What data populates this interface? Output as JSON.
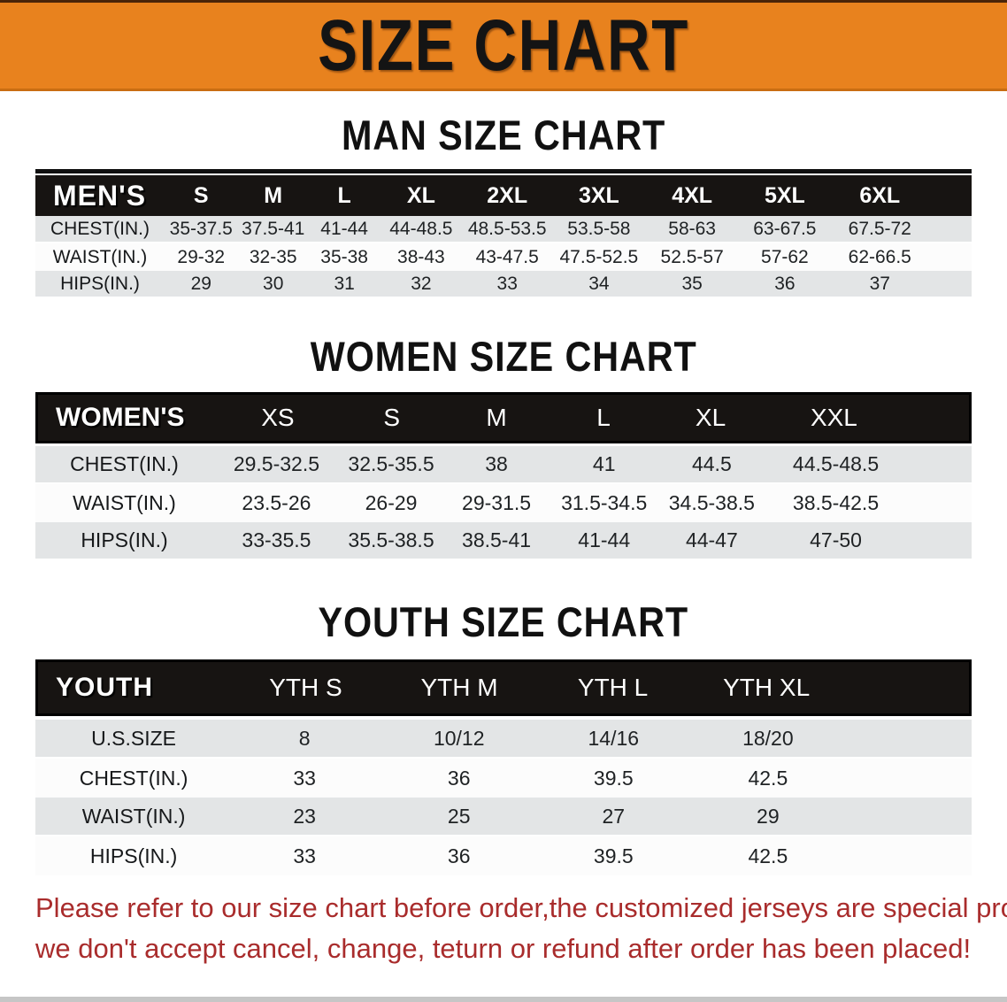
{
  "banner": {
    "title": "SIZE CHART"
  },
  "colors": {
    "banner_orange": "#E8821E",
    "table_header_black": "#171412",
    "row_stripe_gray": "#E3E5E6",
    "note_red": "#A92C2C"
  },
  "sections": [
    {
      "key": "mens",
      "title": "MAN SIZE CHART",
      "header_label": "MEN'S",
      "columns": [
        "S",
        "M",
        "L",
        "XL",
        "2XL",
        "3XL",
        "4XL",
        "5XL",
        "6XL"
      ],
      "rows": [
        {
          "label": "CHEST(IN.)",
          "values": [
            "35-37.5",
            "37.5-41",
            "41-44",
            "44-48.5",
            "48.5-53.5",
            "53.5-58",
            "58-63",
            "63-67.5",
            "67.5-72"
          ]
        },
        {
          "label": "WAIST(IN.)",
          "values": [
            "29-32",
            "32-35",
            "35-38",
            "38-43",
            "43-47.5",
            "47.5-52.5",
            "52.5-57",
            "57-62",
            "62-66.5"
          ]
        },
        {
          "label": "HIPS(IN.)",
          "values": [
            "29",
            "30",
            "31",
            "32",
            "33",
            "34",
            "35",
            "36",
            "37"
          ]
        }
      ]
    },
    {
      "key": "womens",
      "title": "WOMEN SIZE CHART",
      "header_label": "WOMEN'S",
      "columns": [
        "XS",
        "S",
        "M",
        "L",
        "XL",
        "XXL"
      ],
      "rows": [
        {
          "label": "CHEST(IN.)",
          "values": [
            "29.5-32.5",
            "32.5-35.5",
            "38",
            "41",
            "44.5",
            "44.5-48.5"
          ]
        },
        {
          "label": "WAIST(IN.)",
          "values": [
            "23.5-26",
            "26-29",
            "29-31.5",
            "31.5-34.5",
            "34.5-38.5",
            "38.5-42.5"
          ]
        },
        {
          "label": "HIPS(IN.)",
          "values": [
            "33-35.5",
            "35.5-38.5",
            "38.5-41",
            "41-44",
            "44-47",
            "47-50"
          ]
        }
      ]
    },
    {
      "key": "youth",
      "title": "YOUTH SIZE CHART",
      "header_label": "YOUTH",
      "columns": [
        "YTH S",
        "YTH M",
        "YTH L",
        "YTH XL"
      ],
      "rows": [
        {
          "label": "U.S.SIZE",
          "values": [
            "8",
            "10/12",
            "14/16",
            "18/20"
          ]
        },
        {
          "label": "CHEST(IN.)",
          "values": [
            "33",
            "36",
            "39.5",
            "42.5"
          ]
        },
        {
          "label": "WAIST(IN.)",
          "values": [
            "23",
            "25",
            "27",
            "29"
          ]
        },
        {
          "label": "HIPS(IN.)",
          "values": [
            "33",
            "36",
            "39.5",
            "42.5"
          ]
        }
      ]
    }
  ],
  "footer": {
    "line1": "Please refer to our size chart before order,the customized jerseys are special products,",
    "line2": "we don't accept cancel, change, teturn or refund after order has been placed!"
  }
}
